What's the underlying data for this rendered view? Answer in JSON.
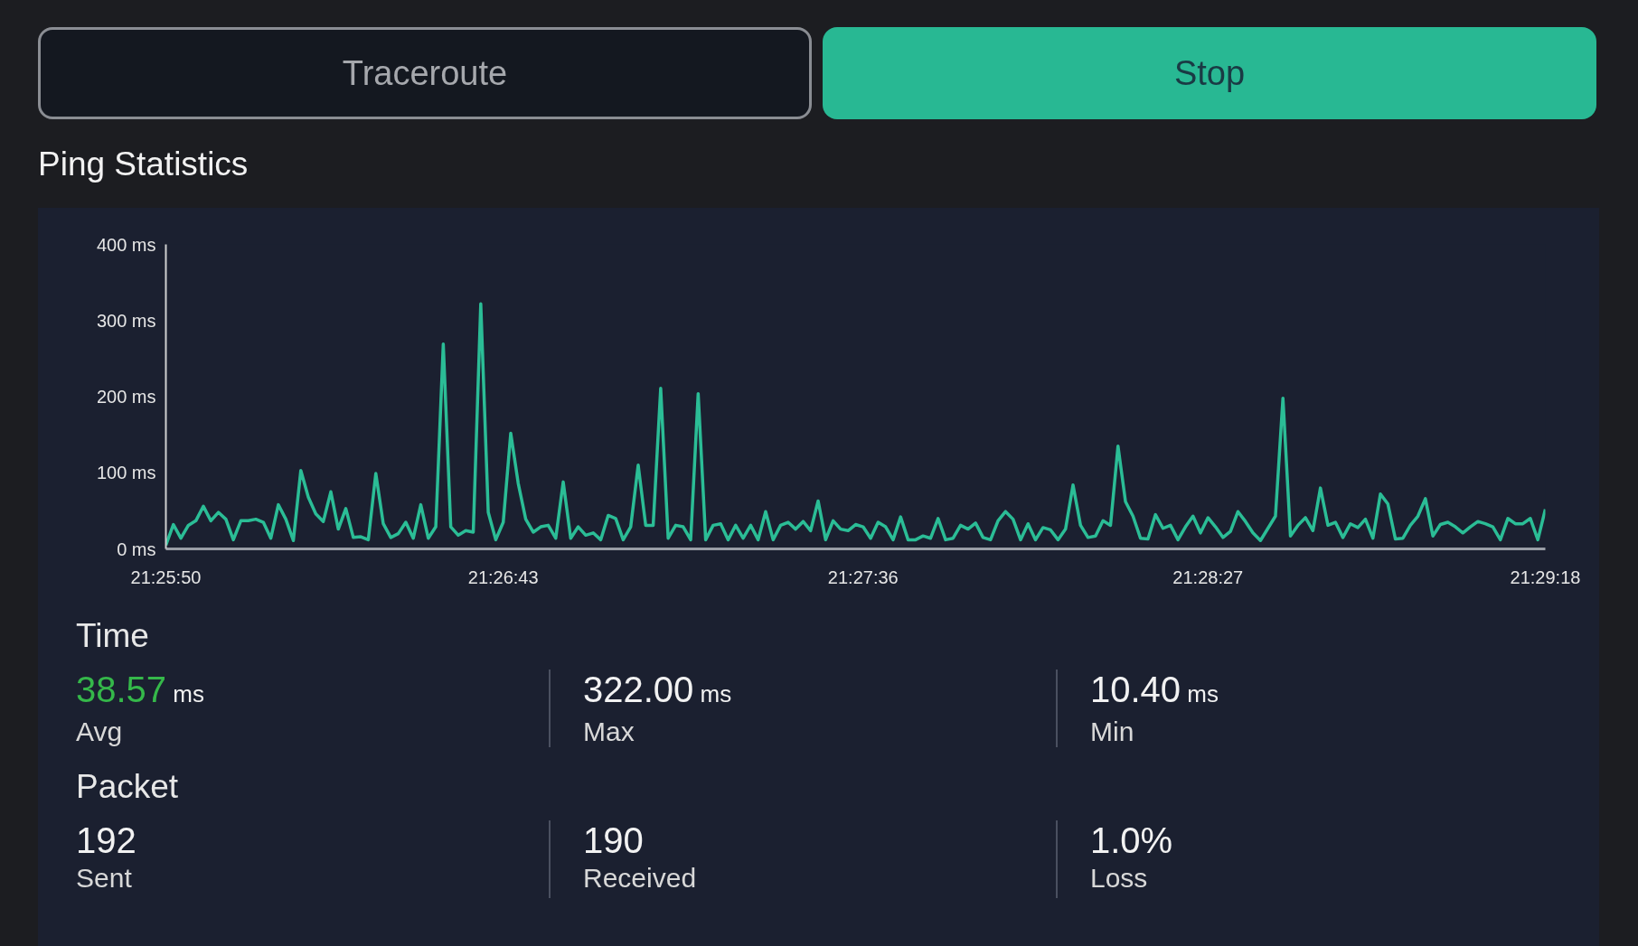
{
  "chart_data": {
    "type": "line",
    "title": "Ping Statistics",
    "categories": [
      "21:25:50",
      null,
      null,
      null,
      null,
      null,
      null,
      null,
      null,
      null,
      null,
      null,
      null,
      null,
      null,
      null,
      null,
      null,
      null,
      null,
      null,
      null,
      null,
      null,
      null,
      null,
      null,
      null,
      null,
      null,
      null,
      null,
      null,
      null,
      null,
      null,
      null,
      null,
      null,
      null,
      null,
      null,
      null,
      null,
      null,
      "21:26:43",
      null,
      null,
      null,
      null,
      null,
      null,
      null,
      null,
      null,
      null,
      null,
      null,
      null,
      null,
      null,
      null,
      null,
      null,
      null,
      null,
      null,
      null,
      null,
      null,
      null,
      null,
      null,
      null,
      null,
      null,
      null,
      null,
      null,
      null,
      null,
      null,
      null,
      null,
      null,
      null,
      null,
      null,
      null,
      null,
      null,
      null,
      null,
      "21:27:36",
      null,
      null,
      null,
      null,
      null,
      null,
      null,
      null,
      null,
      null,
      null,
      null,
      null,
      null,
      null,
      null,
      null,
      null,
      null,
      null,
      null,
      null,
      null,
      null,
      null,
      null,
      null,
      null,
      null,
      null,
      null,
      null,
      null,
      null,
      null,
      null,
      null,
      null,
      null,
      null,
      null,
      null,
      null,
      null,
      null,
      "21:28:27",
      null,
      null,
      null,
      null,
      null,
      null,
      null,
      null,
      null,
      null,
      null,
      null,
      null,
      null,
      null,
      null,
      null,
      null,
      null,
      null,
      null,
      null,
      null,
      null,
      null,
      null,
      null,
      null,
      null,
      null,
      null,
      null,
      null,
      null,
      null,
      null,
      null,
      null,
      null,
      null,
      null,
      null,
      null,
      null,
      "21:29:18"
    ],
    "values": [
      5,
      32,
      14,
      31,
      37,
      56,
      37,
      48,
      39,
      12,
      37,
      37,
      39,
      35,
      14,
      58,
      39,
      11,
      103,
      68,
      46,
      36,
      75,
      26,
      53,
      15,
      16,
      12,
      99,
      33,
      15,
      20,
      35,
      14,
      58,
      14,
      29,
      269,
      29,
      18,
      24,
      22,
      322,
      48,
      12,
      35,
      152,
      86,
      39,
      22,
      29,
      31,
      14,
      88,
      14,
      29,
      18,
      21,
      12,
      44,
      40,
      12,
      29,
      110,
      31,
      31,
      211,
      14,
      31,
      29,
      12,
      204,
      12,
      31,
      33,
      12,
      31,
      14,
      31,
      12,
      49,
      12,
      31,
      35,
      26,
      36,
      24,
      63,
      12,
      37,
      26,
      24,
      32,
      29,
      14,
      35,
      29,
      12,
      42,
      12,
      12,
      17,
      14,
      40,
      12,
      14,
      31,
      26,
      34,
      15,
      12,
      37,
      49,
      39,
      12,
      33,
      12,
      28,
      25,
      12,
      26,
      84,
      31,
      15,
      17,
      37,
      31,
      135,
      62,
      43,
      14,
      13,
      45,
      27,
      31,
      12,
      29,
      43,
      21,
      41,
      29,
      15,
      23,
      49,
      36,
      21,
      11,
      27,
      43,
      198,
      17,
      31,
      41,
      24,
      80,
      31,
      35,
      15,
      33,
      28,
      39,
      14,
      72,
      59,
      13,
      14,
      31,
      43,
      66,
      17,
      32,
      35,
      29,
      21,
      29,
      36,
      33,
      29,
      12,
      40,
      33,
      33,
      40,
      12,
      52
    ],
    "color": "#2bbd96",
    "ylim": [
      0,
      400
    ],
    "yticks": [
      {
        "value": 0,
        "label": "0 ms"
      },
      {
        "value": 100,
        "label": "100 ms"
      },
      {
        "value": 200,
        "label": "200 ms"
      },
      {
        "value": 300,
        "label": "300 ms"
      },
      {
        "value": 400,
        "label": "400 ms"
      }
    ],
    "annotations": [
      "Traceroute",
      "Stop",
      "Time",
      "38.57",
      "ms",
      "Avg",
      "322.00",
      "ms",
      "Max",
      "10.40",
      "ms",
      "Min",
      "Packet",
      "192",
      "Sent",
      "190",
      "Received",
      "1.0%",
      "Loss"
    ]
  }
}
